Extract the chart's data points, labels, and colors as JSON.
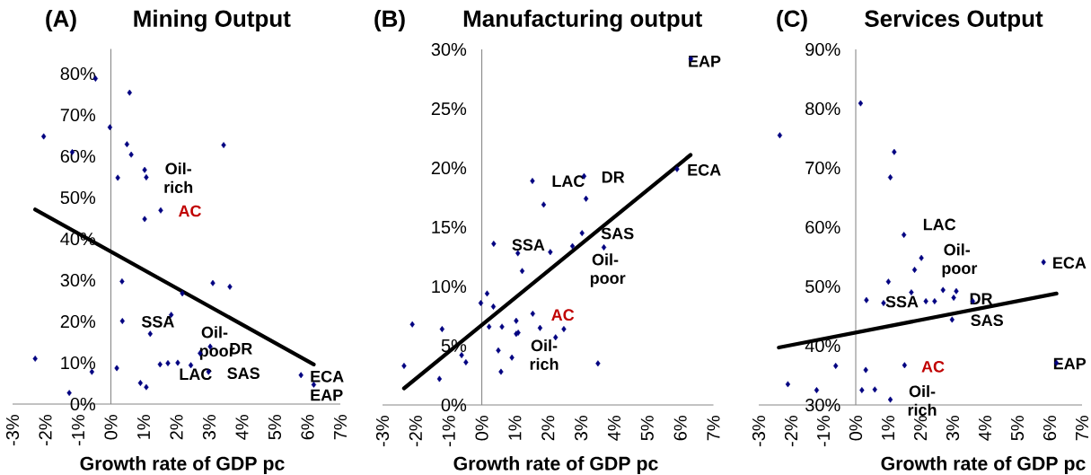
{
  "chart_data": [
    {
      "type": "scatter",
      "title": "Mining Output",
      "xlabel": "Growth rate of GDP pc",
      "xlim": [
        -3,
        7
      ],
      "ylim": [
        0,
        86
      ],
      "marker": "diamond",
      "xticks": [
        {
          "value": -3,
          "label": "-3%"
        },
        {
          "value": -2,
          "label": "-2%"
        },
        {
          "value": -1,
          "label": "-1%"
        },
        {
          "value": 0,
          "label": "0%"
        },
        {
          "value": 1,
          "label": "1%"
        },
        {
          "value": 2,
          "label": "2%"
        },
        {
          "value": 3,
          "label": "3%"
        },
        {
          "value": 4,
          "label": "4%"
        },
        {
          "value": 5,
          "label": "5%"
        },
        {
          "value": 6,
          "label": "6%"
        },
        {
          "value": 7,
          "label": "7%"
        }
      ],
      "yticks": [
        {
          "value": 0,
          "label": "0%"
        },
        {
          "value": 10,
          "label": "10%"
        },
        {
          "value": 20,
          "label": "20%"
        },
        {
          "value": 30,
          "label": "30%"
        },
        {
          "value": 40,
          "label": "40%"
        },
        {
          "value": 50,
          "label": "50%"
        },
        {
          "value": 60,
          "label": "60%"
        },
        {
          "value": 70,
          "label": "70%"
        },
        {
          "value": 80,
          "label": "80%"
        }
      ],
      "series": [
        {
          "color": "#000080",
          "x": [
            -0.47,
            0.57,
            -2.05,
            -0.03,
            -1.18,
            0.49,
            0.62,
            3.44,
            1.03,
            1.08,
            0.21,
            1.52,
            1.03,
            0.34,
            3.11,
            3.63,
            2.18,
            1.84,
            0.35,
            1.2,
            -2.31,
            3.03,
            2.72,
            -0.58,
            0.18,
            1.5,
            1.74,
            2.04,
            2.44,
            2.98,
            5.8,
            6.19,
            0.9,
            1.08,
            -1.27
          ],
          "values": [
            78.8,
            75.4,
            64.8,
            67.0,
            61.0,
            62.9,
            60.4,
            62.7,
            56.7,
            54.9,
            54.8,
            46.9,
            44.8,
            29.7,
            29.3,
            28.4,
            26.8,
            21.6,
            20.1,
            17.0,
            11.0,
            13.9,
            12.3,
            7.8,
            8.7,
            9.6,
            9.9,
            10.0,
            9.4,
            7.8,
            7.0,
            4.7,
            5.1,
            4.1,
            2.7
          ]
        },
        {
          "type": "line",
          "color": "#000000",
          "marker": "none",
          "x": [
            -2.31,
            6.19
          ],
          "values": [
            47.1,
            9.6
          ]
        }
      ],
      "annotations": [
        "(A)",
        "Oil-rich",
        "AC",
        "SSA",
        "Oil-poor",
        "DR",
        "LAC",
        "SAS",
        "ECA",
        "EAP"
      ]
    },
    {
      "type": "scatter",
      "title": "Manufacturing output",
      "xlabel": "Growth rate of GDP pc",
      "xlim": [
        -3,
        7
      ],
      "ylim": [
        0,
        30
      ],
      "marker": "diamond",
      "xticks": [
        {
          "value": -3,
          "label": "-3%"
        },
        {
          "value": -2,
          "label": "-2%"
        },
        {
          "value": -1,
          "label": "-1%"
        },
        {
          "value": 0,
          "label": "0%"
        },
        {
          "value": 1,
          "label": "1%"
        },
        {
          "value": 2,
          "label": "2%"
        },
        {
          "value": 3,
          "label": "3%"
        },
        {
          "value": 4,
          "label": "4%"
        },
        {
          "value": 5,
          "label": "5%"
        },
        {
          "value": 6,
          "label": "6%"
        },
        {
          "value": 7,
          "label": "7%"
        }
      ],
      "yticks": [
        {
          "value": 0,
          "label": "0%"
        },
        {
          "value": 5,
          "label": "5%"
        },
        {
          "value": 10,
          "label": "10%"
        },
        {
          "value": 15,
          "label": "15%"
        },
        {
          "value": 20,
          "label": "20%"
        },
        {
          "value": 25,
          "label": "25%"
        },
        {
          "value": 30,
          "label": "30%"
        }
      ],
      "series": [
        {
          "color": "#000080",
          "x": [
            6.32,
            5.9,
            1.53,
            3.09,
            3.15,
            1.87,
            3.03,
            0.36,
            1.09,
            2.07,
            2.74,
            3.69,
            1.22,
            0.16,
            -0.03,
            0.35,
            1.54,
            1.04,
            -2.1,
            -1.2,
            0.22,
            0.61,
            1.76,
            2.48,
            1.04,
            1.1,
            2.23,
            0.5,
            -0.61,
            -0.48,
            0.91,
            -2.35,
            0.58,
            -1.28,
            3.51
          ],
          "values": [
            29.2,
            19.9,
            18.9,
            19.3,
            17.4,
            16.9,
            14.5,
            13.6,
            12.8,
            12.9,
            13.4,
            13.3,
            11.3,
            9.4,
            8.6,
            8.3,
            7.7,
            7.1,
            6.8,
            6.4,
            6.6,
            6.6,
            6.5,
            6.4,
            6.0,
            6.1,
            5.7,
            4.6,
            4.2,
            3.6,
            4.0,
            3.3,
            2.8,
            2.2,
            3.5
          ]
        },
        {
          "type": "line",
          "color": "#000000",
          "marker": "none",
          "x": [
            -2.35,
            6.31
          ],
          "values": [
            1.4,
            21.1
          ]
        }
      ],
      "annotations": [
        "(B)",
        "EAP",
        "ECA",
        "LAC",
        "DR",
        "SAS",
        "SSA",
        "Oil-poor",
        "AC",
        "Oil-rich"
      ]
    },
    {
      "type": "scatter",
      "title": "Services Output",
      "xlabel": "Growth rate of GDP pc",
      "xlim": [
        -3,
        7
      ],
      "ylim": [
        30,
        90
      ],
      "marker": "diamond",
      "xticks": [
        {
          "value": -3,
          "label": "-3%"
        },
        {
          "value": -2,
          "label": "-2%"
        },
        {
          "value": -1,
          "label": "-1%"
        },
        {
          "value": 0,
          "label": "0%"
        },
        {
          "value": 1,
          "label": "1%"
        },
        {
          "value": 2,
          "label": "2%"
        },
        {
          "value": 3,
          "label": "3%"
        },
        {
          "value": 4,
          "label": "4%"
        },
        {
          "value": 5,
          "label": "5%"
        },
        {
          "value": 6,
          "label": "6%"
        },
        {
          "value": 7,
          "label": "7%"
        }
      ],
      "yticks": [
        {
          "value": 30,
          "label": "30%"
        },
        {
          "value": 40,
          "label": "40%"
        },
        {
          "value": 50,
          "label": "50%"
        },
        {
          "value": 60,
          "label": "60%"
        },
        {
          "value": 70,
          "label": "70%"
        },
        {
          "value": 80,
          "label": "80%"
        },
        {
          "value": 90,
          "label": "90%"
        }
      ],
      "series": [
        {
          "color": "#000080",
          "x": [
            0.15,
            -2.35,
            1.19,
            1.07,
            1.49,
            2.03,
            1.82,
            5.81,
            1.01,
            1.72,
            2.7,
            3.11,
            3.03,
            0.33,
            0.86,
            2.17,
            2.44,
            3.62,
            2.98,
            -0.62,
            1.51,
            0.31,
            6.21,
            -2.1,
            -1.21,
            0.19,
            0.59,
            1.07
          ],
          "values": [
            80.9,
            75.5,
            72.7,
            68.4,
            58.7,
            54.8,
            52.8,
            54.1,
            50.8,
            49.0,
            49.4,
            49.2,
            48.1,
            47.7,
            47.2,
            47.5,
            47.5,
            47.5,
            44.4,
            36.6,
            36.7,
            35.9,
            37.1,
            33.5,
            32.5,
            32.5,
            32.6,
            30.9
          ]
        },
        {
          "type": "line",
          "color": "#000000",
          "marker": "none",
          "x": [
            -2.38,
            6.21
          ],
          "values": [
            39.7,
            48.8
          ]
        }
      ],
      "annotations": [
        "(C)",
        "LAC",
        "Oil-poor",
        "ECA",
        "SSA",
        "DR",
        "SAS",
        "AC",
        "EAP",
        "Oil-rich"
      ]
    }
  ]
}
